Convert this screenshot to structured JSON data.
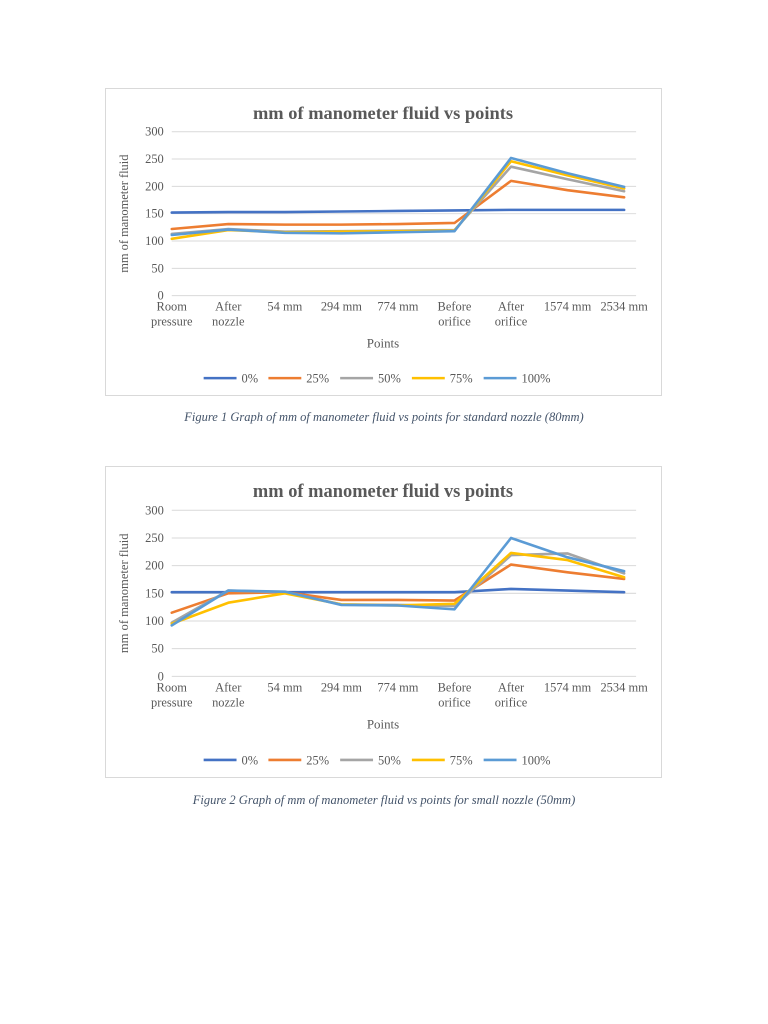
{
  "captions": {
    "figure1": "Figure 1 Graph of mm of manometer fluid vs points for standard nozzle (80mm)",
    "figure2": "Figure 2 Graph of mm of manometer fluid vs points for small nozzle (50mm)"
  },
  "colors": {
    "gridline": "#d9d9d9",
    "axis_text": "#595959",
    "title_text": "#595959",
    "caption_text": "#44546a",
    "chart_border": "#d9d9d9"
  },
  "chart_data": [
    {
      "id": "figure1",
      "type": "line",
      "title": "mm of manometer fluid vs points",
      "xlabel": "Points",
      "ylabel": "mm of manometer fluid",
      "ylim": [
        0,
        300
      ],
      "ytick_step": 50,
      "grid": true,
      "legend_position": "bottom",
      "categories": [
        "Room\npressure",
        "After\nnozzle",
        "54 mm",
        "294 mm",
        "774 mm",
        "Before\norifice",
        "After\norifice",
        "1574 mm",
        "2534 mm"
      ],
      "series": [
        {
          "name": "0%",
          "color": "#4472C4",
          "values": [
            152,
            153,
            153,
            154,
            155,
            156,
            157,
            157,
            157
          ]
        },
        {
          "name": "25%",
          "color": "#ED7D31",
          "values": [
            122,
            131,
            130,
            130,
            131,
            133,
            210,
            193,
            180
          ]
        },
        {
          "name": "50%",
          "color": "#A5A5A5",
          "values": [
            113,
            122,
            117,
            118,
            119,
            120,
            236,
            213,
            191
          ]
        },
        {
          "name": "75%",
          "color": "#FFC000",
          "values": [
            104,
            120,
            116,
            117,
            118,
            119,
            246,
            220,
            196
          ]
        },
        {
          "name": "100%",
          "color": "#5B9BD5",
          "values": [
            111,
            121,
            115,
            114,
            116,
            118,
            252,
            224,
            199
          ]
        }
      ]
    },
    {
      "id": "figure2",
      "type": "line",
      "title": "mm of manometer fluid vs points",
      "xlabel": "Points",
      "ylabel": "mm of manometer fluid",
      "ylim": [
        0,
        300
      ],
      "ytick_step": 50,
      "grid": true,
      "legend_position": "bottom",
      "categories": [
        "Room\npressure",
        "After\nnozzle",
        "54 mm",
        "294 mm",
        "774 mm",
        "Before\norifice",
        "After\norifice",
        "1574 mm",
        "2534 mm"
      ],
      "series": [
        {
          "name": "0%",
          "color": "#4472C4",
          "values": [
            152,
            152,
            152,
            152,
            152,
            152,
            158,
            155,
            152
          ]
        },
        {
          "name": "25%",
          "color": "#ED7D31",
          "values": [
            115,
            150,
            152,
            138,
            138,
            137,
            202,
            188,
            176
          ]
        },
        {
          "name": "50%",
          "color": "#A5A5A5",
          "values": [
            97,
            155,
            152,
            130,
            129,
            127,
            219,
            222,
            186
          ]
        },
        {
          "name": "75%",
          "color": "#FFC000",
          "values": [
            95,
            133,
            150,
            130,
            128,
            131,
            223,
            210,
            179
          ]
        },
        {
          "name": "100%",
          "color": "#5B9BD5",
          "values": [
            92,
            155,
            153,
            129,
            128,
            121,
            250,
            215,
            190
          ]
        }
      ]
    }
  ]
}
